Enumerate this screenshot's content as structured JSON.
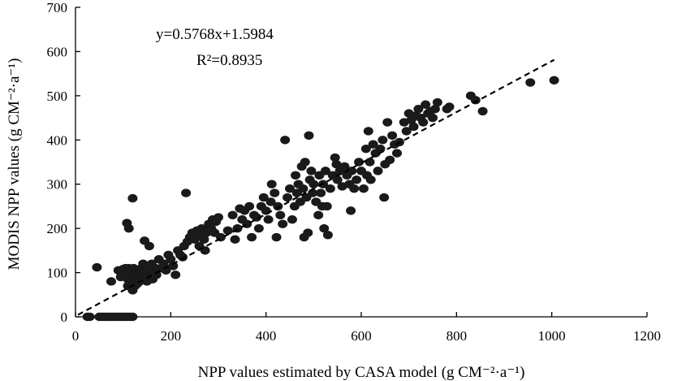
{
  "chart_data": {
    "type": "scatter",
    "title": "",
    "xlabel": "NPP values estimated by CASA model (g CM⁻²·a⁻¹)",
    "ylabel": "MODIS NPP values (g CM⁻²·a⁻¹)",
    "xlim": [
      0,
      1200
    ],
    "ylim": [
      0,
      700
    ],
    "xticks": [
      "0",
      "200",
      "400",
      "600",
      "800",
      "1000",
      "1200"
    ],
    "yticks": [
      "0",
      "100",
      "200",
      "300",
      "400",
      "500",
      "600",
      "700"
    ],
    "grid": false,
    "legend": "none",
    "annotations": {
      "equation": "y=0.5768x+1.5984",
      "r2": "R²=0.8935"
    },
    "regression": {
      "slope": 0.5768,
      "intercept": 1.5984,
      "x_range": [
        5,
        1005
      ],
      "style": "dashed"
    },
    "series": [
      {
        "marker_color": "#1a1a1a",
        "points": [
          [
            25,
            0
          ],
          [
            30,
            0
          ],
          [
            50,
            0
          ],
          [
            55,
            0
          ],
          [
            60,
            0
          ],
          [
            65,
            0
          ],
          [
            70,
            0
          ],
          [
            75,
            0
          ],
          [
            80,
            0
          ],
          [
            85,
            0
          ],
          [
            90,
            0
          ],
          [
            95,
            0
          ],
          [
            100,
            0
          ],
          [
            105,
            0
          ],
          [
            110,
            0
          ],
          [
            115,
            0
          ],
          [
            120,
            0
          ],
          [
            45,
            112
          ],
          [
            75,
            80
          ],
          [
            90,
            105
          ],
          [
            95,
            90
          ],
          [
            100,
            100
          ],
          [
            100,
            108
          ],
          [
            105,
            95
          ],
          [
            105,
            110
          ],
          [
            110,
            70
          ],
          [
            110,
            85
          ],
          [
            110,
            100
          ],
          [
            112,
            110
          ],
          [
            115,
            75
          ],
          [
            115,
            92
          ],
          [
            118,
            105
          ],
          [
            120,
            60
          ],
          [
            120,
            80
          ],
          [
            120,
            95
          ],
          [
            122,
            110
          ],
          [
            125,
            70
          ],
          [
            125,
            88
          ],
          [
            125,
            100
          ],
          [
            128,
            105
          ],
          [
            130,
            75
          ],
          [
            130,
            90
          ],
          [
            132,
            100
          ],
          [
            135,
            80
          ],
          [
            135,
            95
          ],
          [
            138,
            110
          ],
          [
            140,
            85
          ],
          [
            140,
            100
          ],
          [
            142,
            120
          ],
          [
            145,
            90
          ],
          [
            145,
            105
          ],
          [
            148,
            95
          ],
          [
            150,
            80
          ],
          [
            150,
            100
          ],
          [
            152,
            115
          ],
          [
            155,
            90
          ],
          [
            158,
            105
          ],
          [
            160,
            120
          ],
          [
            162,
            85
          ],
          [
            165,
            100
          ],
          [
            168,
            110
          ],
          [
            108,
            212
          ],
          [
            112,
            200
          ],
          [
            120,
            268
          ],
          [
            145,
            172
          ],
          [
            155,
            160
          ],
          [
            170,
            95
          ],
          [
            175,
            130
          ],
          [
            180,
            110
          ],
          [
            185,
            120
          ],
          [
            190,
            105
          ],
          [
            195,
            140
          ],
          [
            200,
            130
          ],
          [
            205,
            115
          ],
          [
            210,
            95
          ],
          [
            215,
            150
          ],
          [
            220,
            140
          ],
          [
            225,
            135
          ],
          [
            228,
            160
          ],
          [
            232,
            280
          ],
          [
            235,
            170
          ],
          [
            240,
            180
          ],
          [
            245,
            190
          ],
          [
            250,
            175
          ],
          [
            255,
            195
          ],
          [
            260,
            160
          ],
          [
            262,
            185
          ],
          [
            265,
            200
          ],
          [
            270,
            175
          ],
          [
            272,
            150
          ],
          [
            275,
            190
          ],
          [
            280,
            210
          ],
          [
            285,
            200
          ],
          [
            288,
            220
          ],
          [
            292,
            190
          ],
          [
            295,
            215
          ],
          [
            300,
            225
          ],
          [
            305,
            180
          ],
          [
            320,
            195
          ],
          [
            330,
            230
          ],
          [
            335,
            175
          ],
          [
            340,
            200
          ],
          [
            345,
            245
          ],
          [
            350,
            220
          ],
          [
            355,
            240
          ],
          [
            360,
            210
          ],
          [
            365,
            250
          ],
          [
            370,
            180
          ],
          [
            375,
            230
          ],
          [
            380,
            225
          ],
          [
            385,
            200
          ],
          [
            390,
            250
          ],
          [
            395,
            270
          ],
          [
            400,
            240
          ],
          [
            405,
            220
          ],
          [
            410,
            260
          ],
          [
            412,
            300
          ],
          [
            418,
            280
          ],
          [
            422,
            180
          ],
          [
            425,
            250
          ],
          [
            430,
            230
          ],
          [
            435,
            210
          ],
          [
            440,
            400
          ],
          [
            445,
            270
          ],
          [
            450,
            290
          ],
          [
            455,
            220
          ],
          [
            460,
            250
          ],
          [
            462,
            320
          ],
          [
            465,
            280
          ],
          [
            468,
            300
          ],
          [
            472,
            260
          ],
          [
            475,
            340
          ],
          [
            478,
            290
          ],
          [
            480,
            180
          ],
          [
            482,
            350
          ],
          [
            485,
            270
          ],
          [
            488,
            190
          ],
          [
            490,
            410
          ],
          [
            492,
            310
          ],
          [
            495,
            330
          ],
          [
            498,
            280
          ],
          [
            500,
            300
          ],
          [
            505,
            260
          ],
          [
            510,
            230
          ],
          [
            512,
            320
          ],
          [
            515,
            280
          ],
          [
            518,
            250
          ],
          [
            520,
            300
          ],
          [
            522,
            200
          ],
          [
            525,
            330
          ],
          [
            528,
            250
          ],
          [
            530,
            185
          ],
          [
            535,
            290
          ],
          [
            540,
            320
          ],
          [
            545,
            360
          ],
          [
            548,
            345
          ],
          [
            550,
            310
          ],
          [
            555,
            330
          ],
          [
            560,
            295
          ],
          [
            565,
            340
          ],
          [
            570,
            320
          ],
          [
            575,
            300
          ],
          [
            578,
            240
          ],
          [
            580,
            330
          ],
          [
            585,
            290
          ],
          [
            590,
            310
          ],
          [
            595,
            350
          ],
          [
            600,
            330
          ],
          [
            605,
            290
          ],
          [
            610,
            380
          ],
          [
            612,
            320
          ],
          [
            615,
            420
          ],
          [
            618,
            350
          ],
          [
            620,
            310
          ],
          [
            625,
            390
          ],
          [
            630,
            370
          ],
          [
            635,
            330
          ],
          [
            640,
            380
          ],
          [
            645,
            400
          ],
          [
            648,
            270
          ],
          [
            650,
            345
          ],
          [
            655,
            440
          ],
          [
            660,
            355
          ],
          [
            665,
            410
          ],
          [
            670,
            390
          ],
          [
            675,
            370
          ],
          [
            680,
            395
          ],
          [
            690,
            440
          ],
          [
            695,
            420
          ],
          [
            700,
            460
          ],
          [
            705,
            445
          ],
          [
            710,
            430
          ],
          [
            715,
            455
          ],
          [
            720,
            470
          ],
          [
            725,
            450
          ],
          [
            730,
            440
          ],
          [
            735,
            480
          ],
          [
            740,
            460
          ],
          [
            745,
            465
          ],
          [
            750,
            450
          ],
          [
            755,
            470
          ],
          [
            760,
            485
          ],
          [
            780,
            470
          ],
          [
            785,
            475
          ],
          [
            830,
            500
          ],
          [
            840,
            490
          ],
          [
            855,
            465
          ],
          [
            955,
            530
          ],
          [
            1005,
            535
          ]
        ]
      }
    ]
  }
}
